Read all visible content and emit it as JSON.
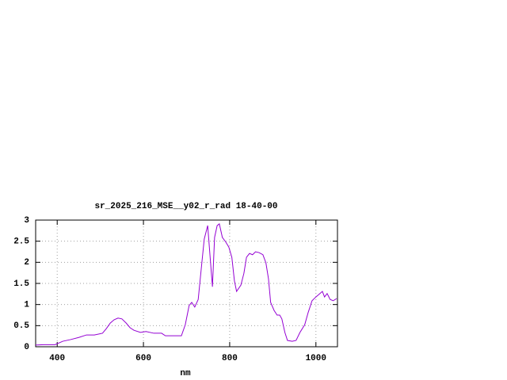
{
  "chart_data": {
    "type": "line",
    "title": "sr_2025_216_MSE__y02_r_rad 18-40-00",
    "x_label": "nm",
    "xlim": [
      350,
      1050
    ],
    "xticks": [
      400,
      600,
      800,
      1000
    ],
    "ylim": [
      0,
      3
    ],
    "yticks": [
      0,
      0.5,
      1,
      1.5,
      2,
      2.5,
      3
    ],
    "grid": true,
    "series": [
      {
        "color": "#9400d3",
        "x": [
          350,
          368,
          395,
          413,
          431,
          450,
          468,
          486,
          505,
          514,
          523,
          532,
          541,
          550,
          560,
          569,
          578,
          593,
          606,
          624,
          642,
          651,
          670,
          688,
          697,
          706,
          712,
          719,
          727,
          734,
          741,
          749,
          754,
          760,
          765,
          771,
          776,
          783,
          791,
          798,
          805,
          811,
          816,
          826,
          833,
          839,
          846,
          853,
          860,
          868,
          877,
          884,
          890,
          895,
          903,
          910,
          916,
          921,
          928,
          934,
          945,
          954,
          963,
          974,
          982,
          991,
          1000,
          1007,
          1015,
          1020,
          1026,
          1033,
          1040,
          1048
        ],
        "values": [
          0.04,
          0.05,
          0.05,
          0.13,
          0.17,
          0.22,
          0.28,
          0.28,
          0.32,
          0.43,
          0.56,
          0.64,
          0.68,
          0.66,
          0.56,
          0.45,
          0.39,
          0.34,
          0.36,
          0.32,
          0.32,
          0.26,
          0.26,
          0.26,
          0.52,
          0.98,
          1.05,
          0.94,
          1.12,
          1.84,
          2.55,
          2.87,
          2.21,
          1.42,
          2.59,
          2.87,
          2.91,
          2.59,
          2.48,
          2.36,
          2.12,
          1.56,
          1.31,
          1.46,
          1.74,
          2.12,
          2.21,
          2.18,
          2.25,
          2.23,
          2.18,
          1.99,
          1.61,
          1.05,
          0.86,
          0.75,
          0.75,
          0.66,
          0.34,
          0.15,
          0.13,
          0.15,
          0.34,
          0.52,
          0.81,
          1.09,
          1.18,
          1.24,
          1.31,
          1.18,
          1.26,
          1.12,
          1.09,
          1.14
        ]
      }
    ]
  }
}
